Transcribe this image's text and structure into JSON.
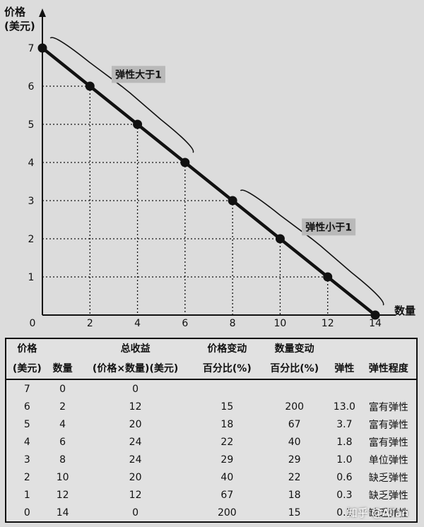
{
  "chart_data": {
    "type": "line",
    "ylabel": "价格\n(美元)",
    "xlabel": "数量",
    "x_ticks": [
      0,
      2,
      4,
      6,
      8,
      10,
      12,
      14
    ],
    "y_ticks": [
      1,
      2,
      3,
      4,
      5,
      6,
      7
    ],
    "xlim": [
      0,
      14
    ],
    "ylim": [
      0,
      7
    ],
    "points": [
      [
        0,
        7
      ],
      [
        2,
        6
      ],
      [
        4,
        5
      ],
      [
        6,
        4
      ],
      [
        8,
        3
      ],
      [
        10,
        2
      ],
      [
        12,
        1
      ],
      [
        14,
        0
      ]
    ],
    "annotations": [
      {
        "text": "弹性大于1",
        "from": [
          0,
          7
        ],
        "to": [
          6,
          4
        ]
      },
      {
        "text": "弹性小于1",
        "from": [
          8,
          3
        ],
        "to": [
          14,
          0
        ]
      }
    ]
  },
  "table": {
    "headers_top": [
      "价格",
      "",
      "总收益",
      "价格变动",
      "数量变动",
      "",
      ""
    ],
    "headers_bottom": [
      "(美元)",
      "数量",
      "(价格×数量)(美元)",
      "百分比(%)",
      "百分比(%)",
      "弹性",
      "弹性程度"
    ],
    "rows": [
      [
        "7",
        "0",
        "0",
        "",
        "",
        "",
        ""
      ],
      [
        "6",
        "2",
        "12",
        "15",
        "200",
        "13.0",
        "富有弹性"
      ],
      [
        "5",
        "4",
        "20",
        "18",
        "67",
        "3.7",
        "富有弹性"
      ],
      [
        "4",
        "6",
        "24",
        "22",
        "40",
        "1.8",
        "富有弹性"
      ],
      [
        "3",
        "8",
        "24",
        "29",
        "29",
        "1.0",
        "单位弹性"
      ],
      [
        "2",
        "10",
        "20",
        "40",
        "22",
        "0.6",
        "缺乏弹性"
      ],
      [
        "1",
        "12",
        "12",
        "67",
        "18",
        "0.3",
        "缺乏弹性"
      ],
      [
        "0",
        "14",
        "0",
        "200",
        "15",
        "0.1",
        "缺乏弹性"
      ]
    ]
  },
  "watermark": "知乎 @Allan"
}
